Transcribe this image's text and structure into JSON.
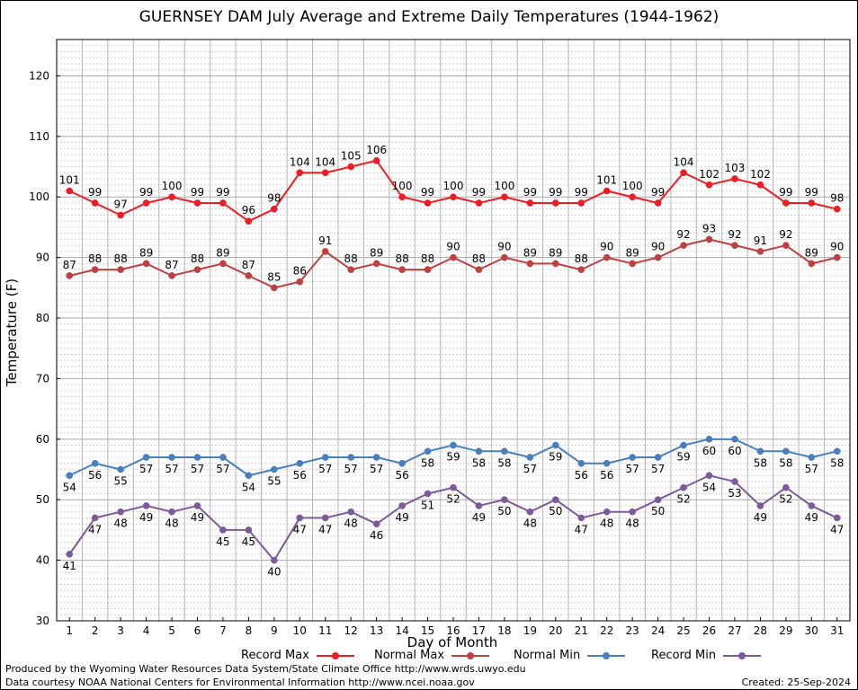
{
  "chart_data": {
    "type": "line",
    "title": "GUERNSEY DAM July Average and Extreme Daily Temperatures (1944-1962)",
    "xlabel": "Day of Month",
    "ylabel": "Temperature (F)",
    "ylim": [
      30,
      126
    ],
    "yticks": [
      30,
      40,
      50,
      60,
      70,
      80,
      90,
      100,
      110,
      120
    ],
    "grid": true,
    "legend_placement": "bottom",
    "categories": [
      1,
      2,
      3,
      4,
      5,
      6,
      7,
      8,
      9,
      10,
      11,
      12,
      13,
      14,
      15,
      16,
      17,
      18,
      19,
      20,
      21,
      22,
      23,
      24,
      25,
      26,
      27,
      28,
      29,
      30,
      31
    ],
    "series": [
      {
        "name": "Record Max",
        "color": "#ee1c23",
        "label_position": "above",
        "values": [
          101,
          99,
          97,
          99,
          100,
          99,
          99,
          96,
          98,
          104,
          104,
          105,
          106,
          100,
          99,
          100,
          99,
          100,
          99,
          99,
          99,
          101,
          100,
          99,
          104,
          102,
          103,
          102,
          99,
          99,
          98
        ]
      },
      {
        "name": "Normal Max",
        "color": "#c04040",
        "label_position": "above",
        "values": [
          87,
          88,
          88,
          89,
          87,
          88,
          89,
          87,
          85,
          86,
          91,
          88,
          89,
          88,
          88,
          90,
          88,
          90,
          89,
          89,
          88,
          90,
          89,
          90,
          92,
          93,
          92,
          91,
          92,
          89,
          90
        ]
      },
      {
        "name": "Normal Min",
        "color": "#4a7fbf",
        "label_position": "below",
        "values": [
          54,
          56,
          55,
          57,
          57,
          57,
          57,
          54,
          55,
          56,
          57,
          57,
          57,
          56,
          58,
          59,
          58,
          58,
          57,
          59,
          56,
          56,
          57,
          57,
          59,
          60,
          60,
          58,
          58,
          57,
          58
        ]
      },
      {
        "name": "Record Min",
        "color": "#7c5a9c",
        "label_position": "below",
        "values": [
          41,
          47,
          48,
          49,
          48,
          49,
          45,
          45,
          40,
          47,
          47,
          48,
          46,
          49,
          51,
          52,
          49,
          50,
          48,
          50,
          47,
          48,
          48,
          50,
          52,
          54,
          53,
          49,
          52,
          49,
          47
        ]
      }
    ]
  },
  "footer": {
    "line1": "Produced by the Wyoming Water Resources Data System/State Climate Office http://www.wrds.uwyo.edu",
    "line2": "Data courtesy NOAA National Centers for Environmental Information http://www.ncei.noaa.gov",
    "created": "Created:  25-Sep-2024"
  }
}
